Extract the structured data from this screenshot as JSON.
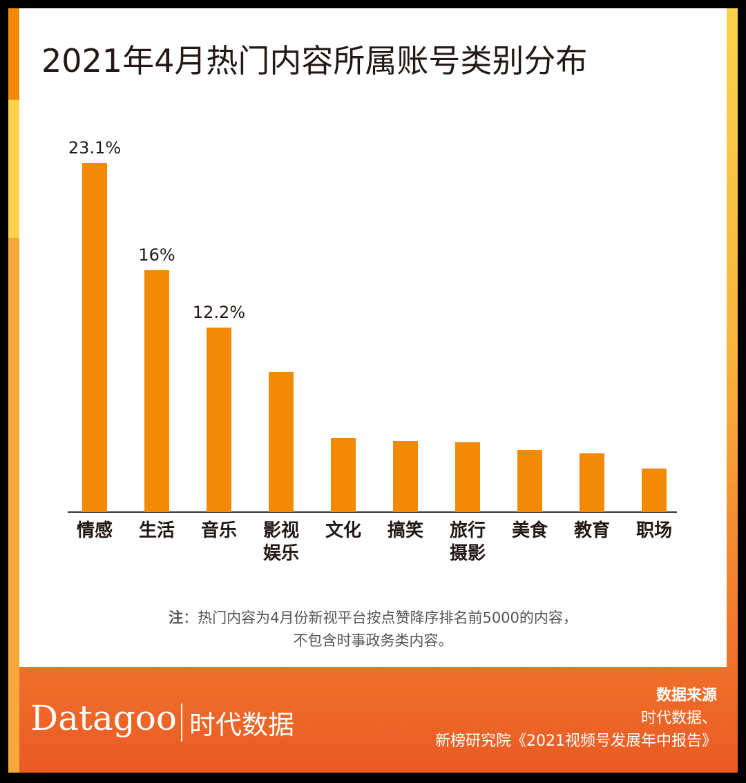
{
  "chart_data": {
    "type": "bar",
    "title": "2021年4月热门内容所属账号类别分布",
    "categories": [
      "情感",
      "生活",
      "音乐",
      "影视\n娱乐",
      "文化",
      "搞笑",
      "旅行\n摄影",
      "美食",
      "教育",
      "职场"
    ],
    "values": [
      23.1,
      16,
      12.2,
      9.3,
      4.9,
      4.7,
      4.6,
      4.1,
      3.9,
      2.9
    ],
    "value_labels": [
      "23.1%",
      "16%",
      "12.2%",
      null,
      null,
      null,
      null,
      null,
      null,
      null
    ],
    "color": "#f28a05"
  },
  "note": {
    "label": "注",
    "lines": [
      "：热门内容为4月份新视平台按点赞降序排名前5000的内容，",
      "不包含时事政务类内容。"
    ]
  },
  "footer": {
    "brand": "Datagoo",
    "brand_cn": "时代数据",
    "source_title": "数据来源",
    "source_lines": [
      "时代数据、",
      "新榜研究院《2021视频号发展年中报告》"
    ]
  }
}
